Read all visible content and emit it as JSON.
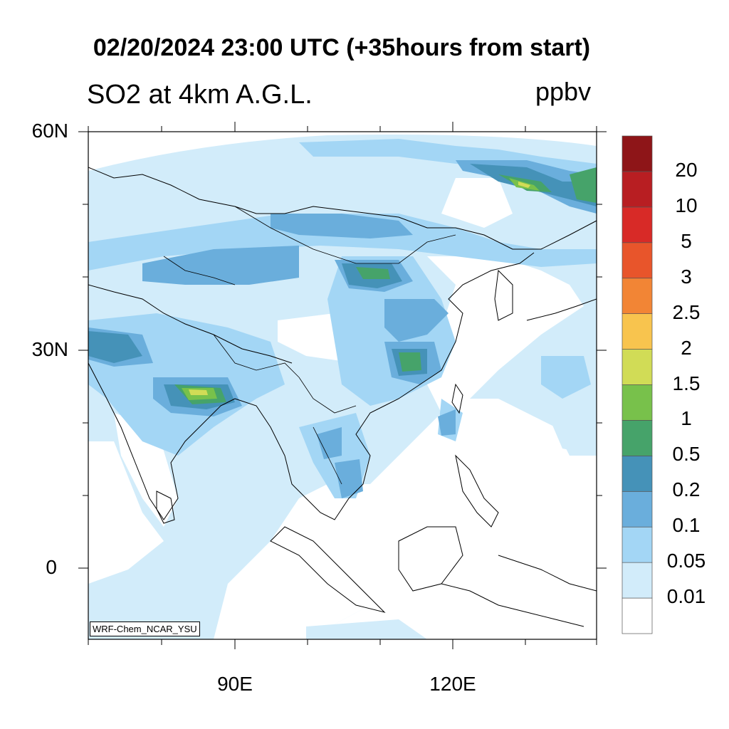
{
  "title": "02/20/2024 23:00 UTC (+35hours from start)",
  "variable": "SO2 at 4km A.G.L.",
  "units": "ppbv",
  "credit": "WRF-Chem_NCAR_YSU",
  "lat_labels": [
    "60N",
    "30N",
    "0"
  ],
  "lon_labels": [
    "90E",
    "120E"
  ],
  "colorbar": {
    "levels": [
      "0.01",
      "0.05",
      "0.1",
      "0.2",
      "0.5",
      "1",
      "1.5",
      "2",
      "2.5",
      "3",
      "5",
      "10",
      "20"
    ],
    "colors": [
      "#ffffff",
      "#d2ecfa",
      "#a3d6f5",
      "#6aaedc",
      "#4592b8",
      "#46a36a",
      "#78c14b",
      "#d1dc56",
      "#f8c44e",
      "#f28535",
      "#e8552b",
      "#d82a27",
      "#b81e22",
      "#8e1518"
    ]
  }
}
